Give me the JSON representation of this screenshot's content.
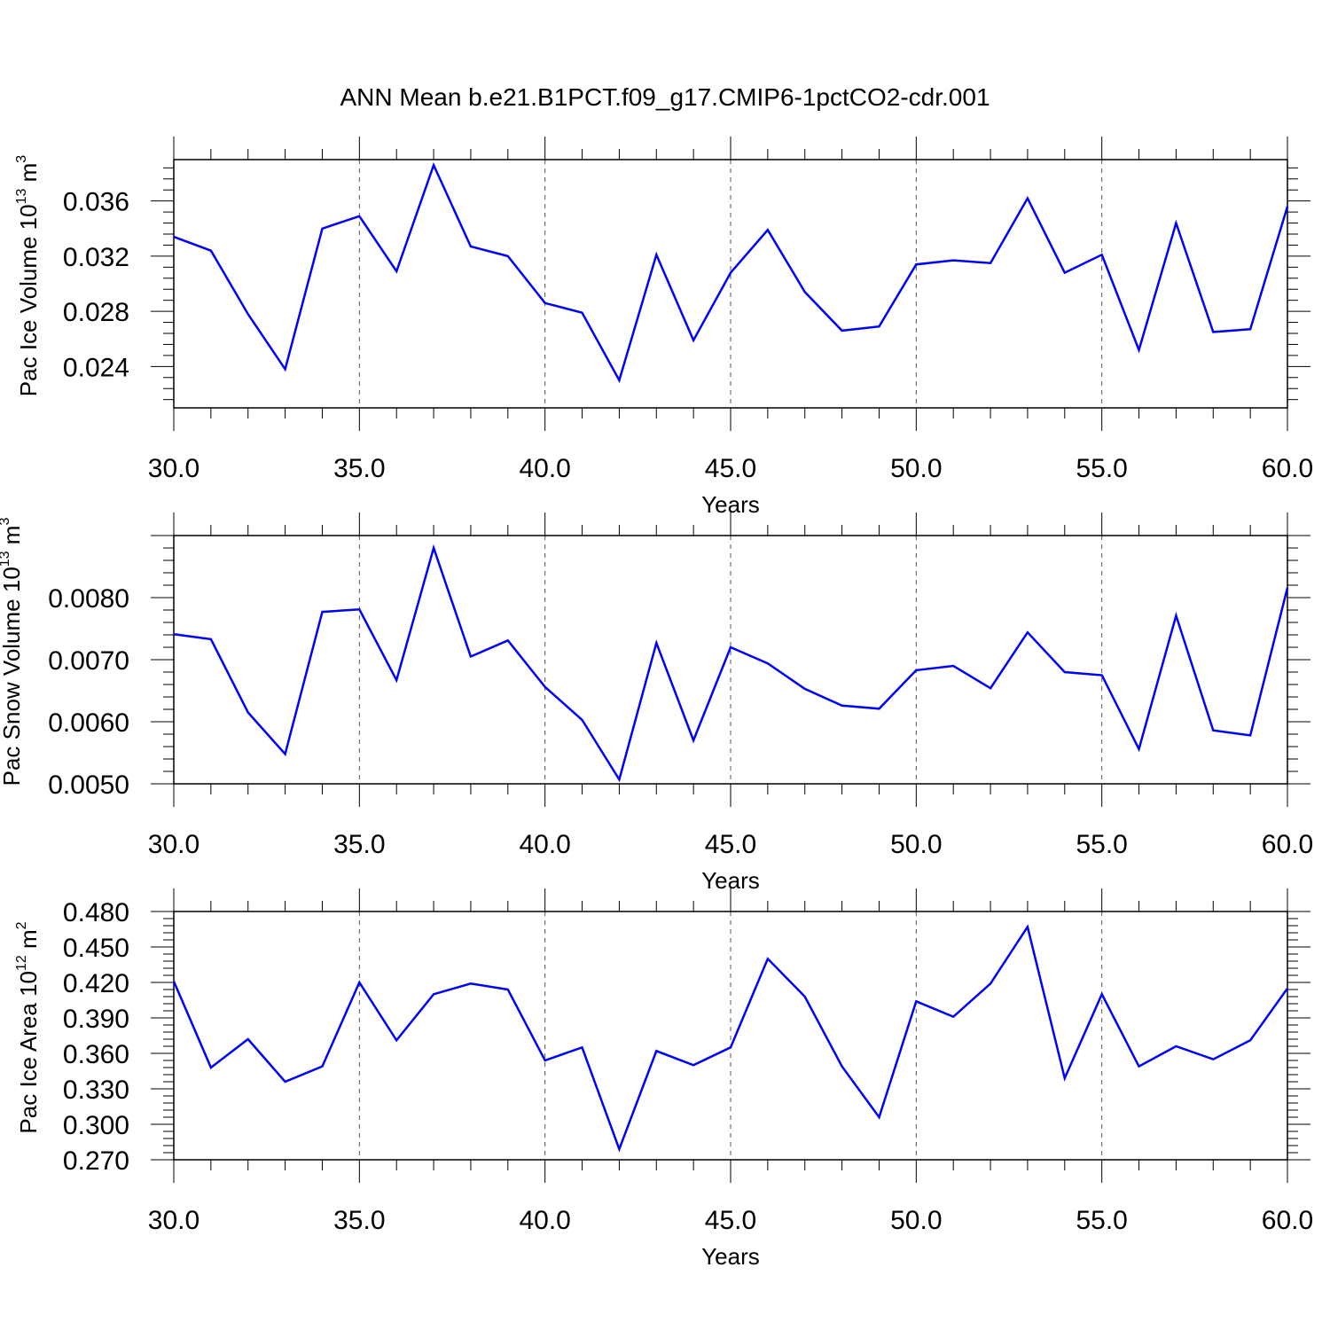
{
  "title": "ANN Mean b.e21.B1PCT.f09_g17.CMIP6-1pctCO2-cdr.001",
  "colors": {
    "line": "#0000ff",
    "axis": "#000000",
    "grid": "#555555"
  },
  "chart_data": [
    {
      "type": "line",
      "ylabel": "Pac Ice Volume 10",
      "ylabel_exp": "13",
      "ylabel_unit": " m",
      "ylabel_unit_exp": "3",
      "xlabel": "Years",
      "xlim": [
        30,
        60
      ],
      "ylim": [
        0.021,
        0.039
      ],
      "x_ticks": [
        "30.0",
        "35.0",
        "40.0",
        "45.0",
        "50.0",
        "55.0",
        "60.0"
      ],
      "y_ticks": [
        "0.024",
        "0.028",
        "0.032",
        "0.036"
      ],
      "x": [
        30,
        31,
        32,
        33,
        34,
        35,
        36,
        37,
        38,
        39,
        40,
        41,
        42,
        43,
        44,
        45,
        46,
        47,
        48,
        49,
        50,
        51,
        52,
        53,
        54,
        55,
        56,
        57,
        58,
        59,
        60
      ],
      "values": [
        0.0334,
        0.0324,
        0.0278,
        0.0238,
        0.034,
        0.0349,
        0.0309,
        0.0386,
        0.0327,
        0.032,
        0.0286,
        0.0279,
        0.023,
        0.0321,
        0.0259,
        0.0308,
        0.0339,
        0.0294,
        0.0266,
        0.0269,
        0.0314,
        0.0317,
        0.0315,
        0.0362,
        0.0308,
        0.0321,
        0.0252,
        0.0344,
        0.0265,
        0.0267,
        0.0356
      ]
    },
    {
      "type": "line",
      "ylabel": "Pac Snow Volume 10",
      "ylabel_exp": "13",
      "ylabel_unit": " m",
      "ylabel_unit_exp": "3",
      "xlabel": "Years",
      "xlim": [
        30,
        60
      ],
      "ylim": [
        0.005,
        0.009
      ],
      "x_ticks": [
        "30.0",
        "35.0",
        "40.0",
        "45.0",
        "50.0",
        "55.0",
        "60.0"
      ],
      "y_ticks": [
        "0.0050",
        "0.0060",
        "0.0070",
        "0.0080"
      ],
      "x": [
        30,
        31,
        32,
        33,
        34,
        35,
        36,
        37,
        38,
        39,
        40,
        41,
        42,
        43,
        44,
        45,
        46,
        47,
        48,
        49,
        50,
        51,
        52,
        53,
        54,
        55,
        56,
        57,
        58,
        59,
        60
      ],
      "values": [
        0.00741,
        0.00733,
        0.00615,
        0.00548,
        0.00777,
        0.00781,
        0.00667,
        0.0088,
        0.00705,
        0.00731,
        0.00656,
        0.00603,
        0.00507,
        0.00727,
        0.0057,
        0.0072,
        0.00694,
        0.00653,
        0.00626,
        0.00621,
        0.00683,
        0.0069,
        0.00654,
        0.00744,
        0.0068,
        0.00675,
        0.00556,
        0.00771,
        0.00586,
        0.00578,
        0.00816
      ]
    },
    {
      "type": "line",
      "ylabel": "Pac Ice Area 10",
      "ylabel_exp": "12",
      "ylabel_unit": " m",
      "ylabel_unit_exp": "2",
      "xlabel": "Years",
      "xlim": [
        30,
        60
      ],
      "ylim": [
        0.27,
        0.48
      ],
      "x_ticks": [
        "30.0",
        "35.0",
        "40.0",
        "45.0",
        "50.0",
        "55.0",
        "60.0"
      ],
      "y_ticks": [
        "0.270",
        "0.300",
        "0.330",
        "0.360",
        "0.390",
        "0.420",
        "0.450",
        "0.480"
      ],
      "x": [
        30,
        31,
        32,
        33,
        34,
        35,
        36,
        37,
        38,
        39,
        40,
        41,
        42,
        43,
        44,
        45,
        46,
        47,
        48,
        49,
        50,
        51,
        52,
        53,
        54,
        55,
        56,
        57,
        58,
        59,
        60
      ],
      "values": [
        0.421,
        0.348,
        0.372,
        0.336,
        0.349,
        0.42,
        0.371,
        0.41,
        0.419,
        0.414,
        0.354,
        0.365,
        0.279,
        0.362,
        0.35,
        0.365,
        0.44,
        0.408,
        0.349,
        0.306,
        0.404,
        0.391,
        0.419,
        0.467,
        0.339,
        0.41,
        0.349,
        0.366,
        0.355,
        0.371,
        0.415
      ]
    }
  ]
}
